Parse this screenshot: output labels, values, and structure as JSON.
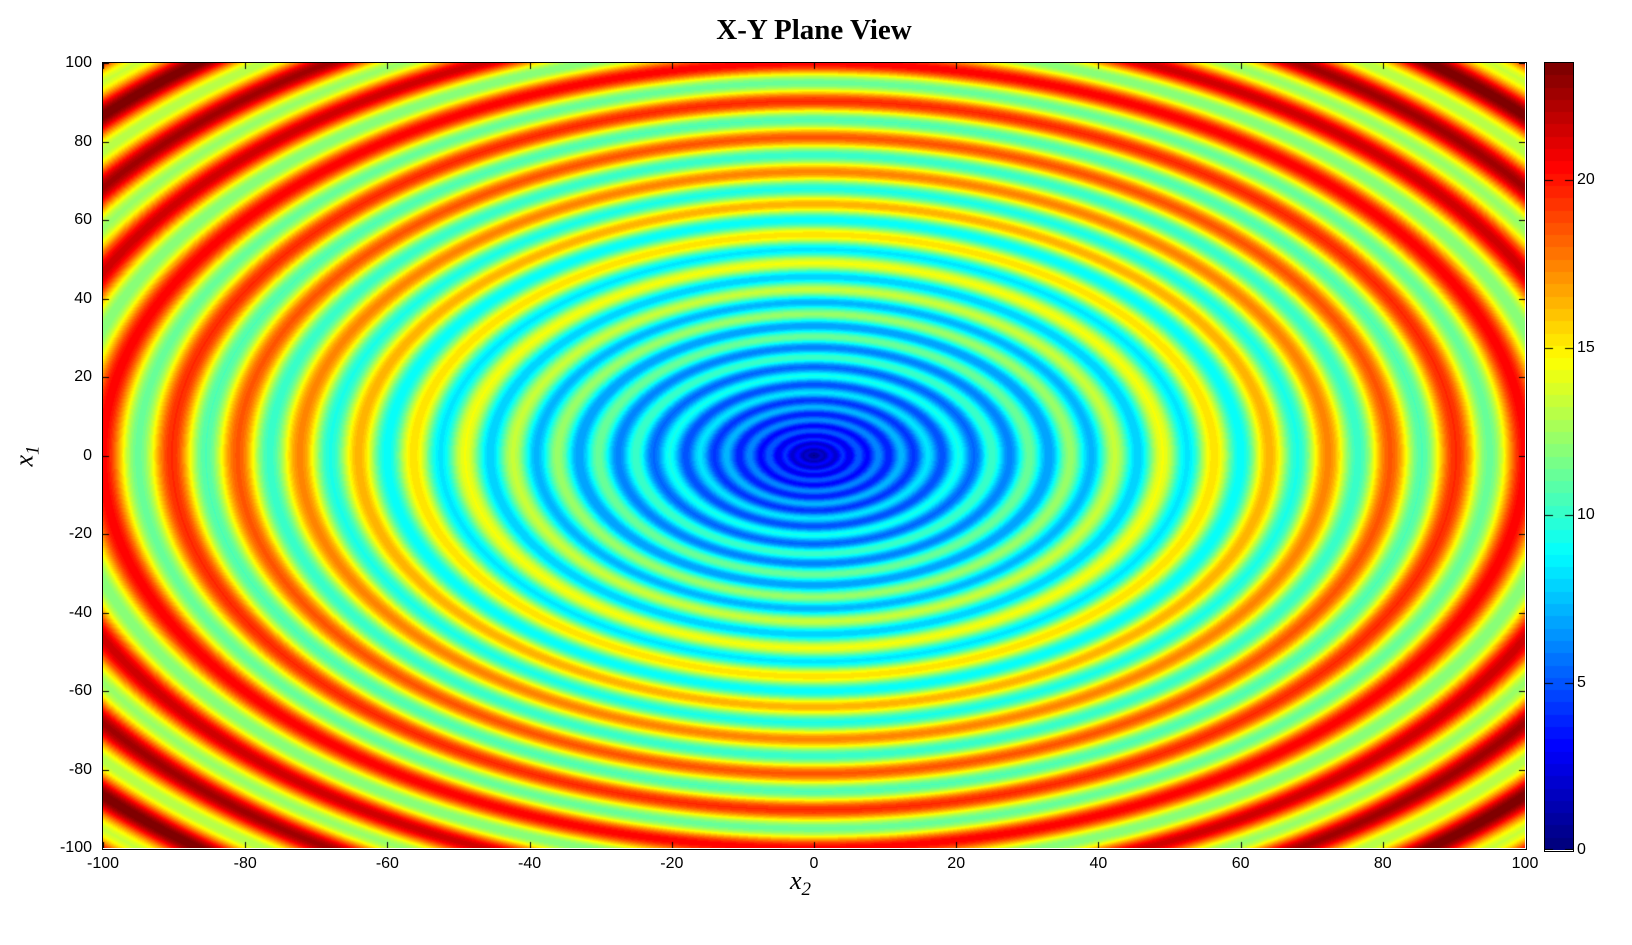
{
  "chart_data": {
    "type": "heatmap",
    "title": "X-Y Plane View",
    "xlabel": {
      "base": "x",
      "sub": "2"
    },
    "ylabel": {
      "base": "x",
      "sub": "1"
    },
    "x_range": [
      -100,
      100
    ],
    "y_range": [
      -100,
      100
    ],
    "x_ticks": [
      -100,
      -80,
      -60,
      -40,
      -20,
      0,
      20,
      40,
      60,
      80,
      100
    ],
    "x_tick_labels": [
      "-100",
      "-80",
      "-60",
      "-40",
      "-20",
      "0",
      "20",
      "40",
      "60",
      "80",
      "100"
    ],
    "y_ticks": [
      100,
      80,
      60,
      40,
      20,
      0,
      -20,
      -40,
      -60,
      -80,
      -100
    ],
    "y_tick_labels": [
      "100",
      "80",
      "60",
      "40",
      "20",
      "0",
      "-20",
      "-40",
      "-60",
      "-80",
      "-100"
    ],
    "colormap": "jet (MATLAB, 64 discrete levels)",
    "clim": [
      0,
      23.5
    ],
    "colorbar_position": "right",
    "colorbar_ticks": [
      0,
      5,
      10,
      15,
      20
    ],
    "colorbar_tick_labels": [
      "0",
      "5",
      "10",
      "15",
      "20"
    ],
    "grid": false,
    "surface_function": {
      "description": "f(x1,x2) = sqrt(r)*(1.6 + 0.45*cos(4*pi*sqrt(r))), r = sqrt(x1^2 + x2^2); concentric ripple rings peaking at r = (n/2)^2, value 0 (dark blue) at center rising to ~23.5 (dark red) toward corners",
      "radial_gain": 1.6,
      "ripple_amplitude": 0.45,
      "ripple_phase_coefficient": 12.566370614359172,
      "quantization_levels": 64
    },
    "colors": {
      "background": "#ffffff",
      "axis": "#000000",
      "jet_low": "#00008f",
      "jet_high": "#7f0000"
    }
  }
}
